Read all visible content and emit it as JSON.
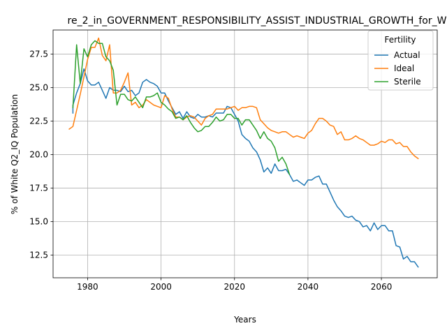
{
  "chart_data": {
    "type": "line",
    "title": "re_2_in_GOVERNMENT_RESPONSIBILITY_ASSIST_INDUSTRIAL_GROWTH_for_W",
    "xlabel": "Years",
    "ylabel": "% of White Q2_IQ Population",
    "xlim": [
      1970.6,
      2075.2
    ],
    "ylim": [
      10.8,
      29.3
    ],
    "x_ticks": [
      1980,
      2000,
      2020,
      2040,
      2060
    ],
    "x_tick_labels": [
      "1980",
      "2000",
      "2020",
      "2040",
      "2060"
    ],
    "y_ticks": [
      12.5,
      15.0,
      17.5,
      20.0,
      22.5,
      25.0,
      27.5
    ],
    "y_tick_labels": [
      "12.5",
      "15.0",
      "17.5",
      "20.0",
      "22.5",
      "25.0",
      "27.5"
    ],
    "grid": true,
    "legend": {
      "title": "Fertility",
      "position": "top-right"
    },
    "series": [
      {
        "name": "Actual",
        "color": "#1f77b4",
        "points": [
          [
            1976,
            23.1
          ],
          [
            1976,
            23.7
          ],
          [
            1977,
            24.6
          ],
          [
            1978,
            25.3
          ],
          [
            1979,
            26.4
          ],
          [
            1980,
            25.5
          ],
          [
            1981,
            25.2
          ],
          [
            1982,
            25.2
          ],
          [
            1983,
            25.4
          ],
          [
            1984,
            24.8
          ],
          [
            1985,
            24.2
          ],
          [
            1986,
            25.0
          ],
          [
            1987,
            24.8
          ],
          [
            1988,
            24.8
          ],
          [
            1989,
            24.7
          ],
          [
            1990,
            25.1
          ],
          [
            1991,
            24.7
          ],
          [
            1992,
            24.8
          ],
          [
            1993,
            24.4
          ],
          [
            1994,
            24.6
          ],
          [
            1995,
            25.4
          ],
          [
            1996,
            25.6
          ],
          [
            1997,
            25.4
          ],
          [
            1998,
            25.3
          ],
          [
            1999,
            25.1
          ],
          [
            2000,
            24.6
          ],
          [
            2001,
            24.6
          ],
          [
            2002,
            24.0
          ],
          [
            2003,
            23.5
          ],
          [
            2004,
            23.0
          ],
          [
            2005,
            23.2
          ],
          [
            2006,
            22.7
          ],
          [
            2007,
            23.2
          ],
          [
            2008,
            22.8
          ],
          [
            2009,
            22.7
          ],
          [
            2010,
            23.0
          ],
          [
            2011,
            22.8
          ],
          [
            2012,
            22.8
          ],
          [
            2013,
            22.9
          ],
          [
            2014,
            22.8
          ],
          [
            2015,
            23.1
          ],
          [
            2016,
            23.1
          ],
          [
            2017,
            23.1
          ],
          [
            2018,
            23.6
          ],
          [
            2019,
            23.5
          ],
          [
            2020,
            23.0
          ],
          [
            2021,
            22.5
          ],
          [
            2022,
            21.5
          ],
          [
            2023,
            21.2
          ],
          [
            2024,
            21.0
          ],
          [
            2025,
            20.5
          ],
          [
            2026,
            20.2
          ],
          [
            2027,
            19.6
          ],
          [
            2028,
            18.7
          ],
          [
            2029,
            19.0
          ],
          [
            2030,
            18.6
          ],
          [
            2031,
            19.3
          ],
          [
            2032,
            18.8
          ],
          [
            2033,
            18.8
          ],
          [
            2034,
            18.9
          ],
          [
            2035,
            18.5
          ],
          [
            2036,
            18.0
          ],
          [
            2037,
            18.1
          ],
          [
            2038,
            17.9
          ],
          [
            2039,
            17.7
          ],
          [
            2040,
            18.1
          ],
          [
            2041,
            18.1
          ],
          [
            2042,
            18.3
          ],
          [
            2043,
            18.4
          ],
          [
            2044,
            17.8
          ],
          [
            2045,
            17.8
          ],
          [
            2046,
            17.2
          ],
          [
            2047,
            16.6
          ],
          [
            2048,
            16.1
          ],
          [
            2049,
            15.8
          ],
          [
            2050,
            15.4
          ],
          [
            2051,
            15.3
          ],
          [
            2052,
            15.4
          ],
          [
            2053,
            15.1
          ],
          [
            2054,
            15.0
          ],
          [
            2055,
            14.6
          ],
          [
            2056,
            14.7
          ],
          [
            2057,
            14.3
          ],
          [
            2058,
            14.9
          ],
          [
            2059,
            14.4
          ],
          [
            2060,
            14.7
          ],
          [
            2061,
            14.7
          ],
          [
            2062,
            14.3
          ],
          [
            2063,
            14.3
          ],
          [
            2064,
            13.2
          ],
          [
            2065,
            13.1
          ],
          [
            2066,
            12.2
          ],
          [
            2067,
            12.4
          ],
          [
            2068,
            12.0
          ],
          [
            2069,
            12.0
          ],
          [
            2070,
            11.6
          ]
        ]
      },
      {
        "name": "Ideal",
        "color": "#ff7f0e",
        "points": [
          [
            1975,
            21.9
          ],
          [
            1976,
            22.1
          ],
          [
            1977,
            23.3
          ],
          [
            1978,
            24.5
          ],
          [
            1979,
            25.8
          ],
          [
            1980,
            27.1
          ],
          [
            1981,
            28.0
          ],
          [
            1982,
            28.0
          ],
          [
            1983,
            28.7
          ],
          [
            1984,
            27.4
          ],
          [
            1985,
            27.0
          ],
          [
            1986,
            28.2
          ],
          [
            1987,
            24.6
          ],
          [
            1988,
            24.6
          ],
          [
            1989,
            24.8
          ],
          [
            1990,
            25.4
          ],
          [
            1991,
            26.1
          ],
          [
            1992,
            23.7
          ],
          [
            1993,
            23.9
          ],
          [
            1994,
            23.5
          ],
          [
            1995,
            23.7
          ],
          [
            1996,
            24.1
          ],
          [
            1997,
            23.9
          ],
          [
            1998,
            23.7
          ],
          [
            1999,
            23.6
          ],
          [
            2000,
            23.5
          ],
          [
            2001,
            24.4
          ],
          [
            2002,
            24.2
          ],
          [
            2003,
            23.4
          ],
          [
            2004,
            22.8
          ],
          [
            2005,
            22.8
          ],
          [
            2006,
            22.6
          ],
          [
            2007,
            22.8
          ],
          [
            2008,
            22.9
          ],
          [
            2009,
            22.8
          ],
          [
            2010,
            22.5
          ],
          [
            2011,
            22.2
          ],
          [
            2012,
            22.7
          ],
          [
            2013,
            22.9
          ],
          [
            2014,
            23.0
          ],
          [
            2015,
            23.4
          ],
          [
            2016,
            23.4
          ],
          [
            2017,
            23.4
          ],
          [
            2018,
            23.4
          ],
          [
            2019,
            23.5
          ],
          [
            2020,
            23.6
          ],
          [
            2021,
            23.3
          ],
          [
            2022,
            23.5
          ],
          [
            2023,
            23.5
          ],
          [
            2024,
            23.6
          ],
          [
            2025,
            23.6
          ],
          [
            2026,
            23.5
          ],
          [
            2027,
            22.6
          ],
          [
            2028,
            22.3
          ],
          [
            2029,
            22.0
          ],
          [
            2030,
            21.8
          ],
          [
            2031,
            21.7
          ],
          [
            2032,
            21.6
          ],
          [
            2033,
            21.7
          ],
          [
            2034,
            21.7
          ],
          [
            2035,
            21.5
          ],
          [
            2036,
            21.3
          ],
          [
            2037,
            21.4
          ],
          [
            2038,
            21.3
          ],
          [
            2039,
            21.2
          ],
          [
            2040,
            21.6
          ],
          [
            2041,
            21.8
          ],
          [
            2042,
            22.3
          ],
          [
            2043,
            22.7
          ],
          [
            2044,
            22.7
          ],
          [
            2045,
            22.5
          ],
          [
            2046,
            22.2
          ],
          [
            2047,
            22.1
          ],
          [
            2048,
            21.5
          ],
          [
            2049,
            21.7
          ],
          [
            2050,
            21.1
          ],
          [
            2051,
            21.1
          ],
          [
            2052,
            21.2
          ],
          [
            2053,
            21.4
          ],
          [
            2054,
            21.2
          ],
          [
            2055,
            21.1
          ],
          [
            2056,
            20.9
          ],
          [
            2057,
            20.7
          ],
          [
            2058,
            20.7
          ],
          [
            2059,
            20.8
          ],
          [
            2060,
            21.0
          ],
          [
            2061,
            20.9
          ],
          [
            2062,
            21.1
          ],
          [
            2063,
            21.1
          ],
          [
            2064,
            20.8
          ],
          [
            2065,
            20.9
          ],
          [
            2066,
            20.6
          ],
          [
            2067,
            20.6
          ],
          [
            2068,
            20.2
          ],
          [
            2069,
            19.9
          ],
          [
            2070,
            19.7
          ]
        ]
      },
      {
        "name": "Sterile",
        "color": "#2ca02c",
        "points": [
          [
            1976,
            23.5
          ],
          [
            1977,
            28.2
          ],
          [
            1978,
            25.3
          ],
          [
            1979,
            27.9
          ],
          [
            1980,
            27.3
          ],
          [
            1981,
            28.2
          ],
          [
            1982,
            28.5
          ],
          [
            1983,
            28.3
          ],
          [
            1984,
            28.3
          ],
          [
            1985,
            27.3
          ],
          [
            1986,
            27.0
          ],
          [
            1987,
            26.3
          ],
          [
            1988,
            23.7
          ],
          [
            1989,
            24.5
          ],
          [
            1990,
            24.5
          ],
          [
            1991,
            24.1
          ],
          [
            1992,
            24.0
          ],
          [
            1993,
            24.3
          ],
          [
            1994,
            23.9
          ],
          [
            1995,
            23.5
          ],
          [
            1996,
            24.3
          ],
          [
            1997,
            24.3
          ],
          [
            1998,
            24.4
          ],
          [
            1999,
            24.6
          ],
          [
            2000,
            23.9
          ],
          [
            2001,
            23.7
          ],
          [
            2002,
            23.4
          ],
          [
            2003,
            23.2
          ],
          [
            2004,
            22.7
          ],
          [
            2005,
            22.8
          ],
          [
            2006,
            22.6
          ],
          [
            2007,
            22.9
          ],
          [
            2008,
            22.4
          ],
          [
            2009,
            22.0
          ],
          [
            2010,
            21.7
          ],
          [
            2011,
            21.8
          ],
          [
            2012,
            22.1
          ],
          [
            2013,
            22.1
          ],
          [
            2014,
            22.4
          ],
          [
            2015,
            22.8
          ],
          [
            2016,
            22.5
          ],
          [
            2017,
            22.6
          ],
          [
            2018,
            23.0
          ],
          [
            2019,
            23.0
          ],
          [
            2020,
            22.7
          ],
          [
            2021,
            22.7
          ],
          [
            2022,
            22.2
          ],
          [
            2023,
            22.6
          ],
          [
            2024,
            22.6
          ],
          [
            2025,
            22.2
          ],
          [
            2026,
            21.8
          ],
          [
            2027,
            21.2
          ],
          [
            2028,
            21.7
          ],
          [
            2029,
            21.2
          ],
          [
            2030,
            21.0
          ],
          [
            2031,
            20.5
          ],
          [
            2032,
            19.5
          ],
          [
            2033,
            19.8
          ],
          [
            2034,
            19.3
          ],
          [
            2035,
            18.5
          ]
        ]
      }
    ]
  }
}
